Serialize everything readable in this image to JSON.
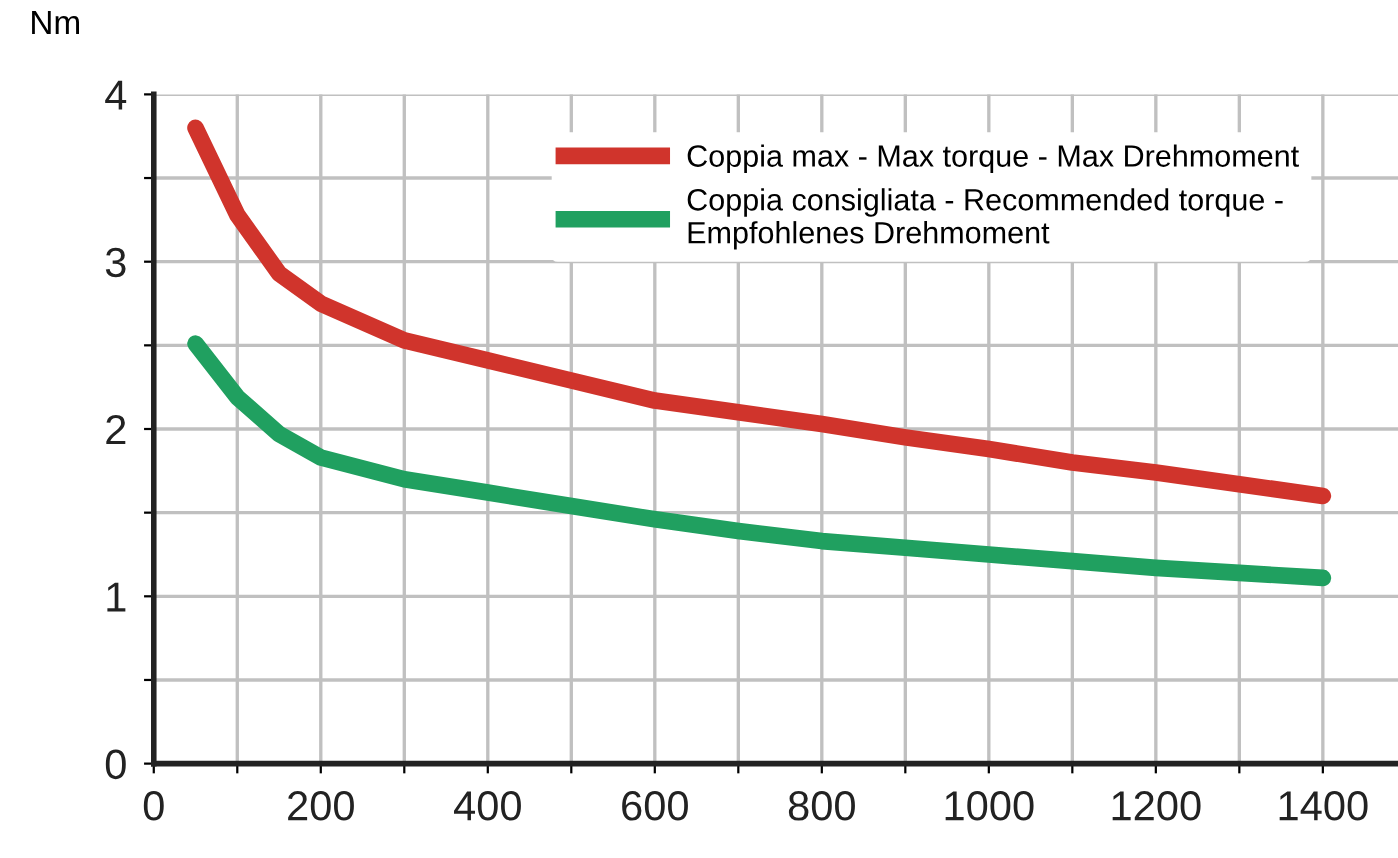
{
  "chart_data": {
    "type": "line",
    "ylabel": "Nm",
    "xlim": [
      0,
      1490
    ],
    "ylim": [
      0,
      4
    ],
    "xticks": [
      0,
      {
        "value": 100,
        "label": null
      },
      200,
      {
        "value": 300,
        "label": null
      },
      400,
      {
        "value": 500,
        "label": null
      },
      600,
      {
        "value": 700,
        "label": null
      },
      800,
      {
        "value": 900,
        "label": null
      },
      1000,
      {
        "value": 1100,
        "label": null
      },
      1200,
      {
        "value": 1300,
        "label": null
      },
      1400
    ],
    "yticks": [
      0,
      {
        "value": 0.5,
        "label": null
      },
      1,
      {
        "value": 1.5,
        "label": null
      },
      2,
      {
        "value": 2.5,
        "label": null
      },
      3,
      {
        "value": 3.5,
        "label": null
      },
      4
    ],
    "grid": true,
    "legend": "top right",
    "marker": "none",
    "line_style": "solid",
    "series": [
      {
        "name": "Coppia max - Max torque - Max Drehmoment",
        "color": "#d0342c",
        "x": [
          50,
          100,
          150,
          200,
          300,
          400,
          500,
          600,
          700,
          800,
          900,
          1000,
          1100,
          1200,
          1300,
          1400
        ],
        "values": [
          3.8,
          3.28,
          2.93,
          2.75,
          2.53,
          2.41,
          2.29,
          2.17,
          2.1,
          2.03,
          1.95,
          1.88,
          1.8,
          1.74,
          1.67,
          1.6
        ]
      },
      {
        "name": "Coppia consigliata - Recommended torque -\nEmpfohlenes Drehmoment",
        "color": "#20a060",
        "x": [
          50,
          100,
          150,
          200,
          300,
          400,
          500,
          600,
          700,
          800,
          900,
          1000,
          1100,
          1200,
          1300,
          1400
        ],
        "values": [
          2.51,
          2.19,
          1.97,
          1.83,
          1.7,
          1.62,
          1.54,
          1.46,
          1.39,
          1.33,
          1.29,
          1.25,
          1.21,
          1.17,
          1.14,
          1.11
        ]
      }
    ]
  }
}
